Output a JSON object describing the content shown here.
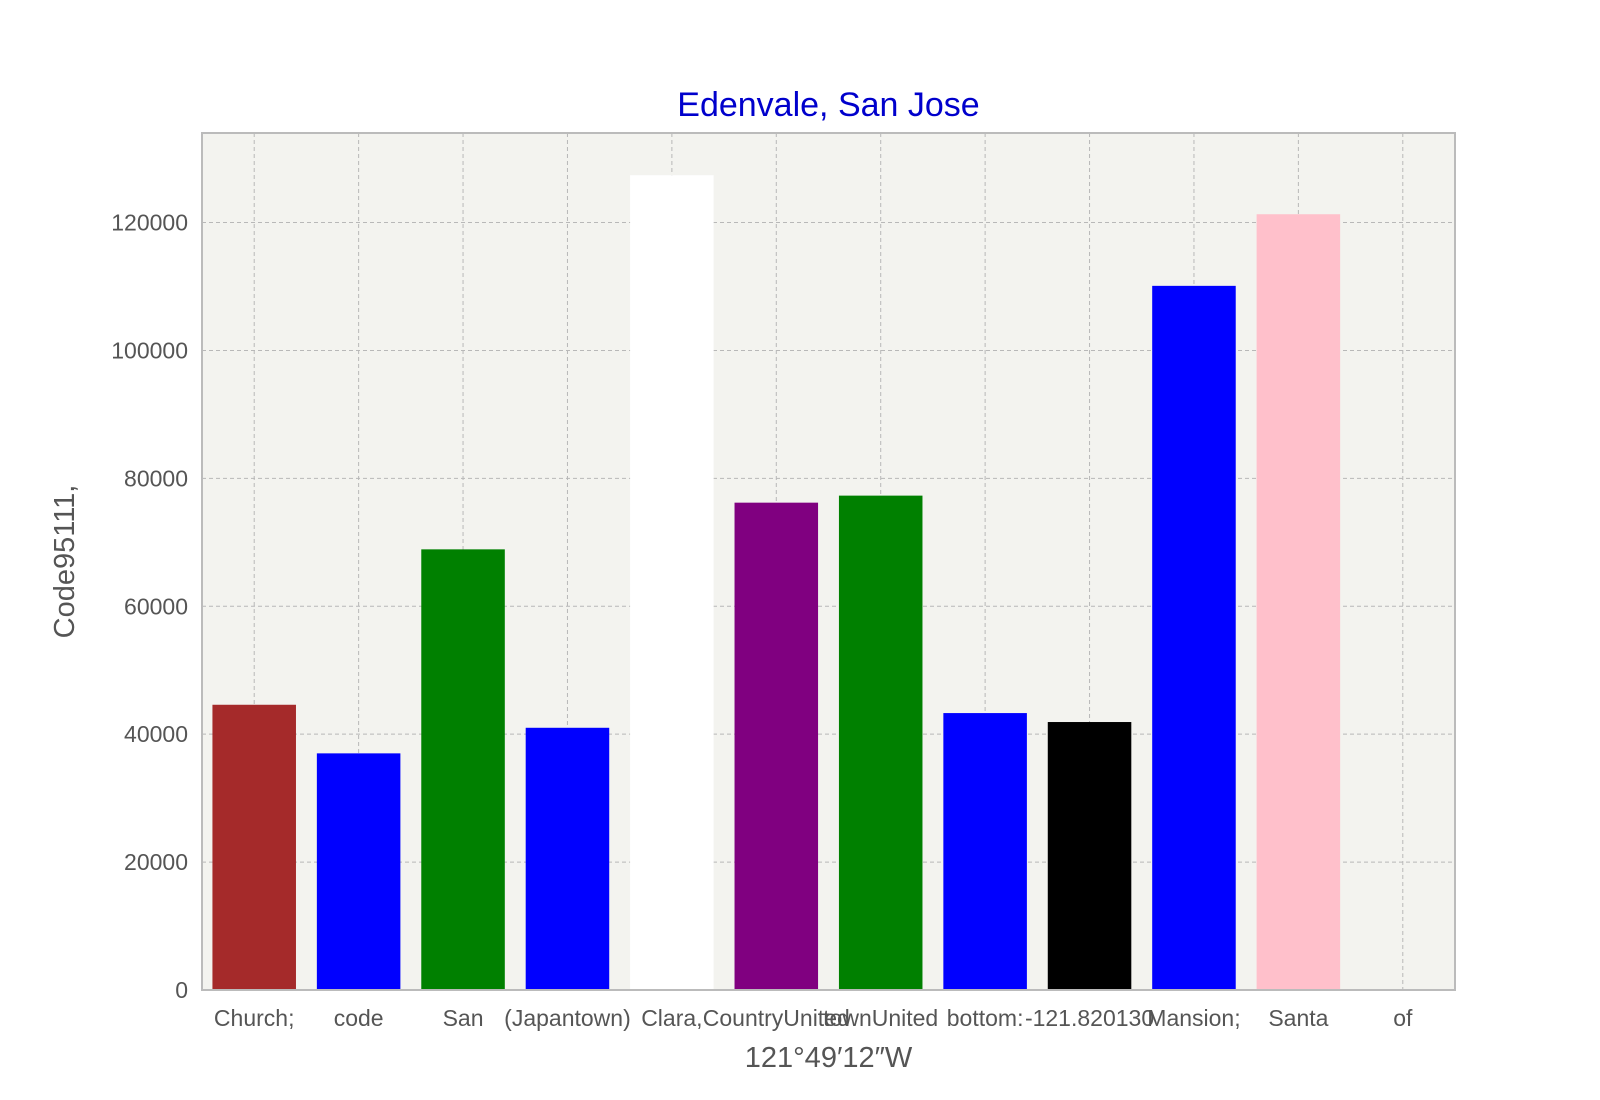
{
  "chart_data": {
    "type": "bar",
    "title": "Edenvale, San Jose",
    "title_color": "#0000cc",
    "xlabel": "121°49′12″W⁣",
    "ylabel": "Code95111,",
    "categories": [
      "Church;",
      "code",
      "San",
      "(Japantown)",
      "Clara,",
      "CountryUnited",
      "townUnited",
      "bottom:",
      "-121.820130⁣",
      "Mansion;",
      "Santa",
      "of"
    ],
    "bars": [
      {
        "category_index": 0,
        "value": 44600,
        "color": "#a52a2a"
      },
      {
        "category_index": 1,
        "value": 37000,
        "color": "#0000ff"
      },
      {
        "category_index": 2,
        "value": 68900,
        "color": "#008000"
      },
      {
        "category_index": 3,
        "value": 41000,
        "color": "#0000ff"
      },
      {
        "category_index": 4,
        "value": 127400,
        "color": "#ffffff"
      },
      {
        "category_index": 5,
        "value": 76200,
        "color": "#800080"
      },
      {
        "category_index": 6,
        "value": 77300,
        "color": "#008000"
      },
      {
        "category_index": 7,
        "value": 43300,
        "color": "#0000ff"
      },
      {
        "category_index": 8,
        "value": 41900,
        "color": "#000000"
      },
      {
        "category_index": 9,
        "value": 110100,
        "color": "#0000ff"
      },
      {
        "category_index": 10,
        "value": 121300,
        "color": "#ffc0cb"
      }
    ],
    "yticks": [
      0,
      20000,
      40000,
      60000,
      80000,
      100000,
      120000
    ],
    "ylim": [
      0,
      134000
    ],
    "grid": true,
    "plot_background": "#f3f3ef",
    "axis_color": "#bbbbbb"
  }
}
